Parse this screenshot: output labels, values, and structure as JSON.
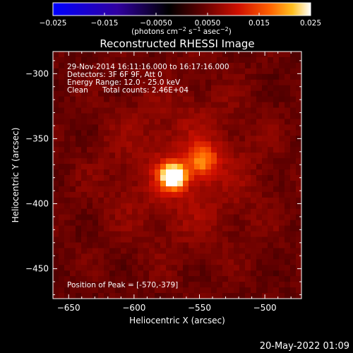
{
  "chart_data": {
    "type": "heatmap",
    "title": "Reconstructed RHESSI Image",
    "xlabel": "Heliocentric X (arcsec)",
    "ylabel": "Heliocentric Y (arcsec)",
    "xlim": [
      -662,
      -472
    ],
    "ylim": [
      -473,
      -283
    ],
    "x_ticks": [
      -650,
      -600,
      -550,
      -500
    ],
    "y_ticks": [
      -450,
      -400,
      -350,
      -300
    ],
    "colorbar": {
      "range": [
        -0.025,
        0.025
      ],
      "ticks": [
        "−0.025",
        "−0.015",
        "−0.0050",
        "0.0050",
        "0.015",
        "0.025"
      ],
      "label_text": "(photons cm",
      "label_exp1": "−2",
      "label_mid": " s",
      "label_exp2": "−1",
      "label_mid2": " asec",
      "label_exp3": "−2",
      "label_end": ")",
      "colors": [
        "#0000ff",
        "#3000a0",
        "#000000",
        "#600000",
        "#d01000",
        "#ff6000",
        "#ffc020",
        "#ffffff"
      ]
    },
    "sources": [
      {
        "x": -570,
        "y": -379,
        "peak": 0.025,
        "sigma_arcsec": 7
      },
      {
        "x": -548,
        "y": -367,
        "peak": 0.012,
        "sigma_arcsec": 8
      }
    ],
    "background_level": 0.004,
    "info": {
      "time": "29-Nov-2014 16:11:16.000 to 16:17:16.000",
      "detectors": "Detectors: 3F 6F 9F, Att 0",
      "energy": "Energy Range: 12.0 - 25.0 keV",
      "clean_label": "Clean",
      "counts": "Total counts: 2.46E+04"
    },
    "peak_label": "Position of Peak = [-570,-379]"
  },
  "footer": {
    "date": "20-May-2022 01:09"
  }
}
